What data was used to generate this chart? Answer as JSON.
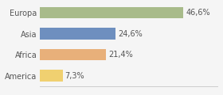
{
  "categories": [
    "Europa",
    "Asia",
    "Africa",
    "America"
  ],
  "values": [
    46.6,
    24.6,
    21.4,
    7.3
  ],
  "labels": [
    "46,6%",
    "24,6%",
    "21,4%",
    "7,3%"
  ],
  "bar_colors": [
    "#a8bb8a",
    "#6e8fbf",
    "#e8b07a",
    "#f0d070"
  ],
  "background_color": "#f5f5f5",
  "xlim": [
    0,
    58
  ],
  "bar_height": 0.55,
  "label_fontsize": 7.0,
  "category_fontsize": 7.0
}
